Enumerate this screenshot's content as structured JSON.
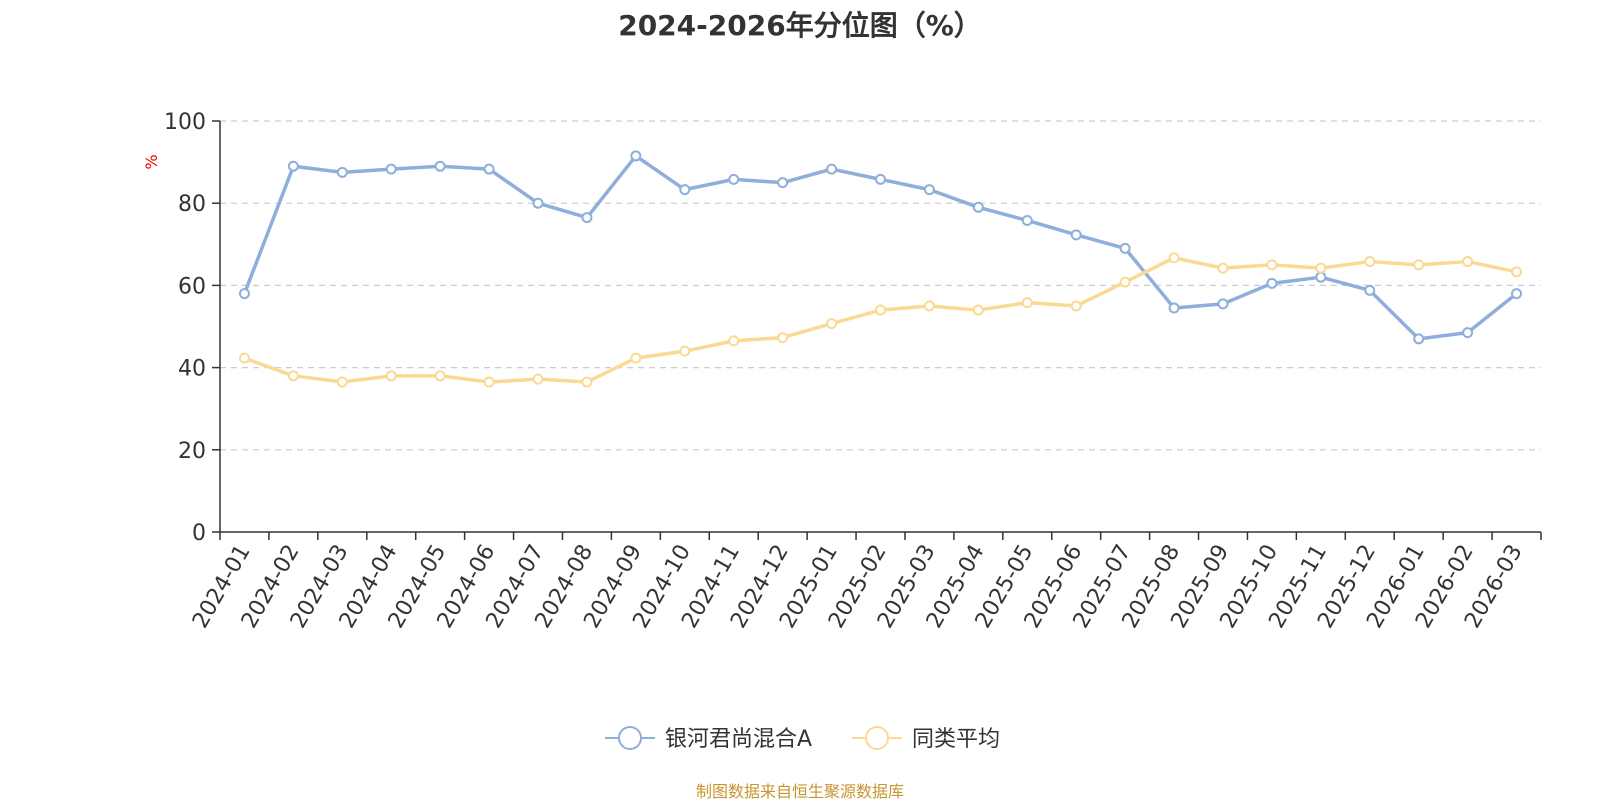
{
  "chart_data": {
    "type": "line",
    "title": "2024-2026年分位图（%）",
    "ylabel": "%",
    "xlabel": "",
    "ylim": [
      0,
      100
    ],
    "yticks": [
      0,
      20,
      40,
      60,
      80,
      100
    ],
    "grid": true,
    "legend_position": "bottom-center",
    "categories": [
      "2024-01",
      "2024-02",
      "2024-03",
      "2024-04",
      "2024-05",
      "2024-06",
      "2024-07",
      "2024-08",
      "2024-09",
      "2024-10",
      "2024-11",
      "2024-12",
      "2025-01",
      "2025-02",
      "2025-03",
      "2025-04",
      "2025-05",
      "2025-06",
      "2025-07",
      "2025-08",
      "2025-09",
      "2025-10",
      "2025-11",
      "2025-12",
      "2026-01",
      "2026-02",
      "2026-03"
    ],
    "series": [
      {
        "name": "银河君尚混合A",
        "color": "#8eaedb",
        "values": [
          58,
          89,
          87.5,
          88.3,
          89,
          88.3,
          80,
          76.5,
          91.5,
          83.3,
          85.8,
          85,
          88.3,
          85.8,
          83.3,
          79,
          75.8,
          72.3,
          69,
          54.5,
          55.5,
          60.5,
          62,
          58.8,
          47,
          48.5,
          58
        ]
      },
      {
        "name": "同类平均",
        "color": "#fcd993",
        "values": [
          42.3,
          38,
          36.5,
          38,
          38,
          36.5,
          37.2,
          36.5,
          42.3,
          44,
          46.5,
          47.3,
          50.7,
          54,
          55,
          54,
          55.8,
          55,
          60.8,
          66.7,
          64.2,
          65,
          64.2,
          65.8,
          65,
          65.8,
          63.3
        ]
      }
    ]
  },
  "source_note": "制图数据来自恒生聚源数据库"
}
